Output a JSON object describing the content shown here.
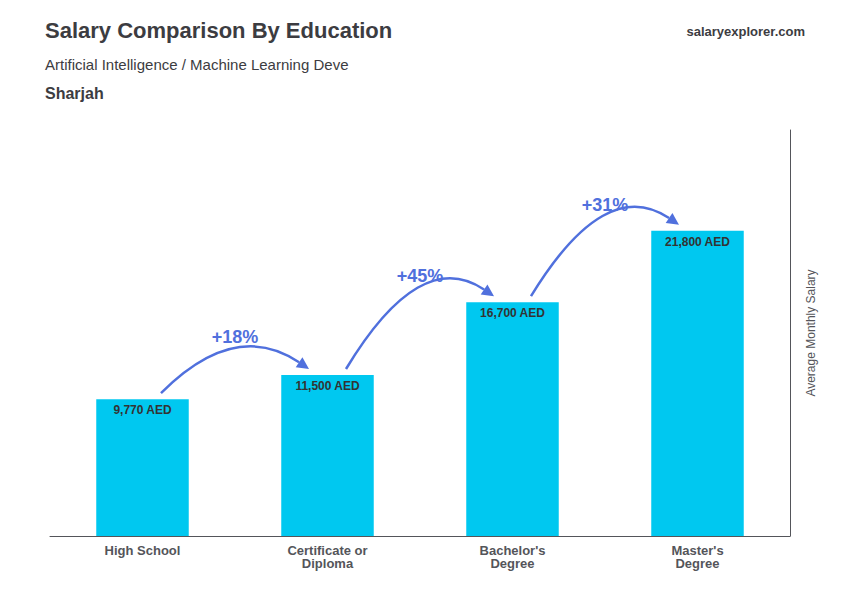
{
  "chart_data": {
    "type": "bar",
    "title": "Salary Comparison By Education",
    "subtitle": "Artificial Intelligence / Machine Learning Deve",
    "annotations": [
      "Sharjah"
    ],
    "watermark": [
      "salary",
      "explorer.com"
    ],
    "ylabel": "Average Monthly Salary",
    "categories": [
      "High School",
      "Certificate or\nDiploma",
      "Bachelor's\nDegree",
      "Master's\nDegree"
    ],
    "values": [
      9770,
      11500,
      16700,
      21800
    ],
    "value_labels": [
      "9,770 AED",
      "11,500 AED",
      "16,700 AED",
      "21,800 AED"
    ],
    "data_labels": true,
    "change_labels": [
      "+18%",
      "+45%",
      "+31%"
    ],
    "color": "#00C8F0",
    "ylim": [
      0,
      29000
    ],
    "grid": false,
    "tick_labels": "x"
  }
}
